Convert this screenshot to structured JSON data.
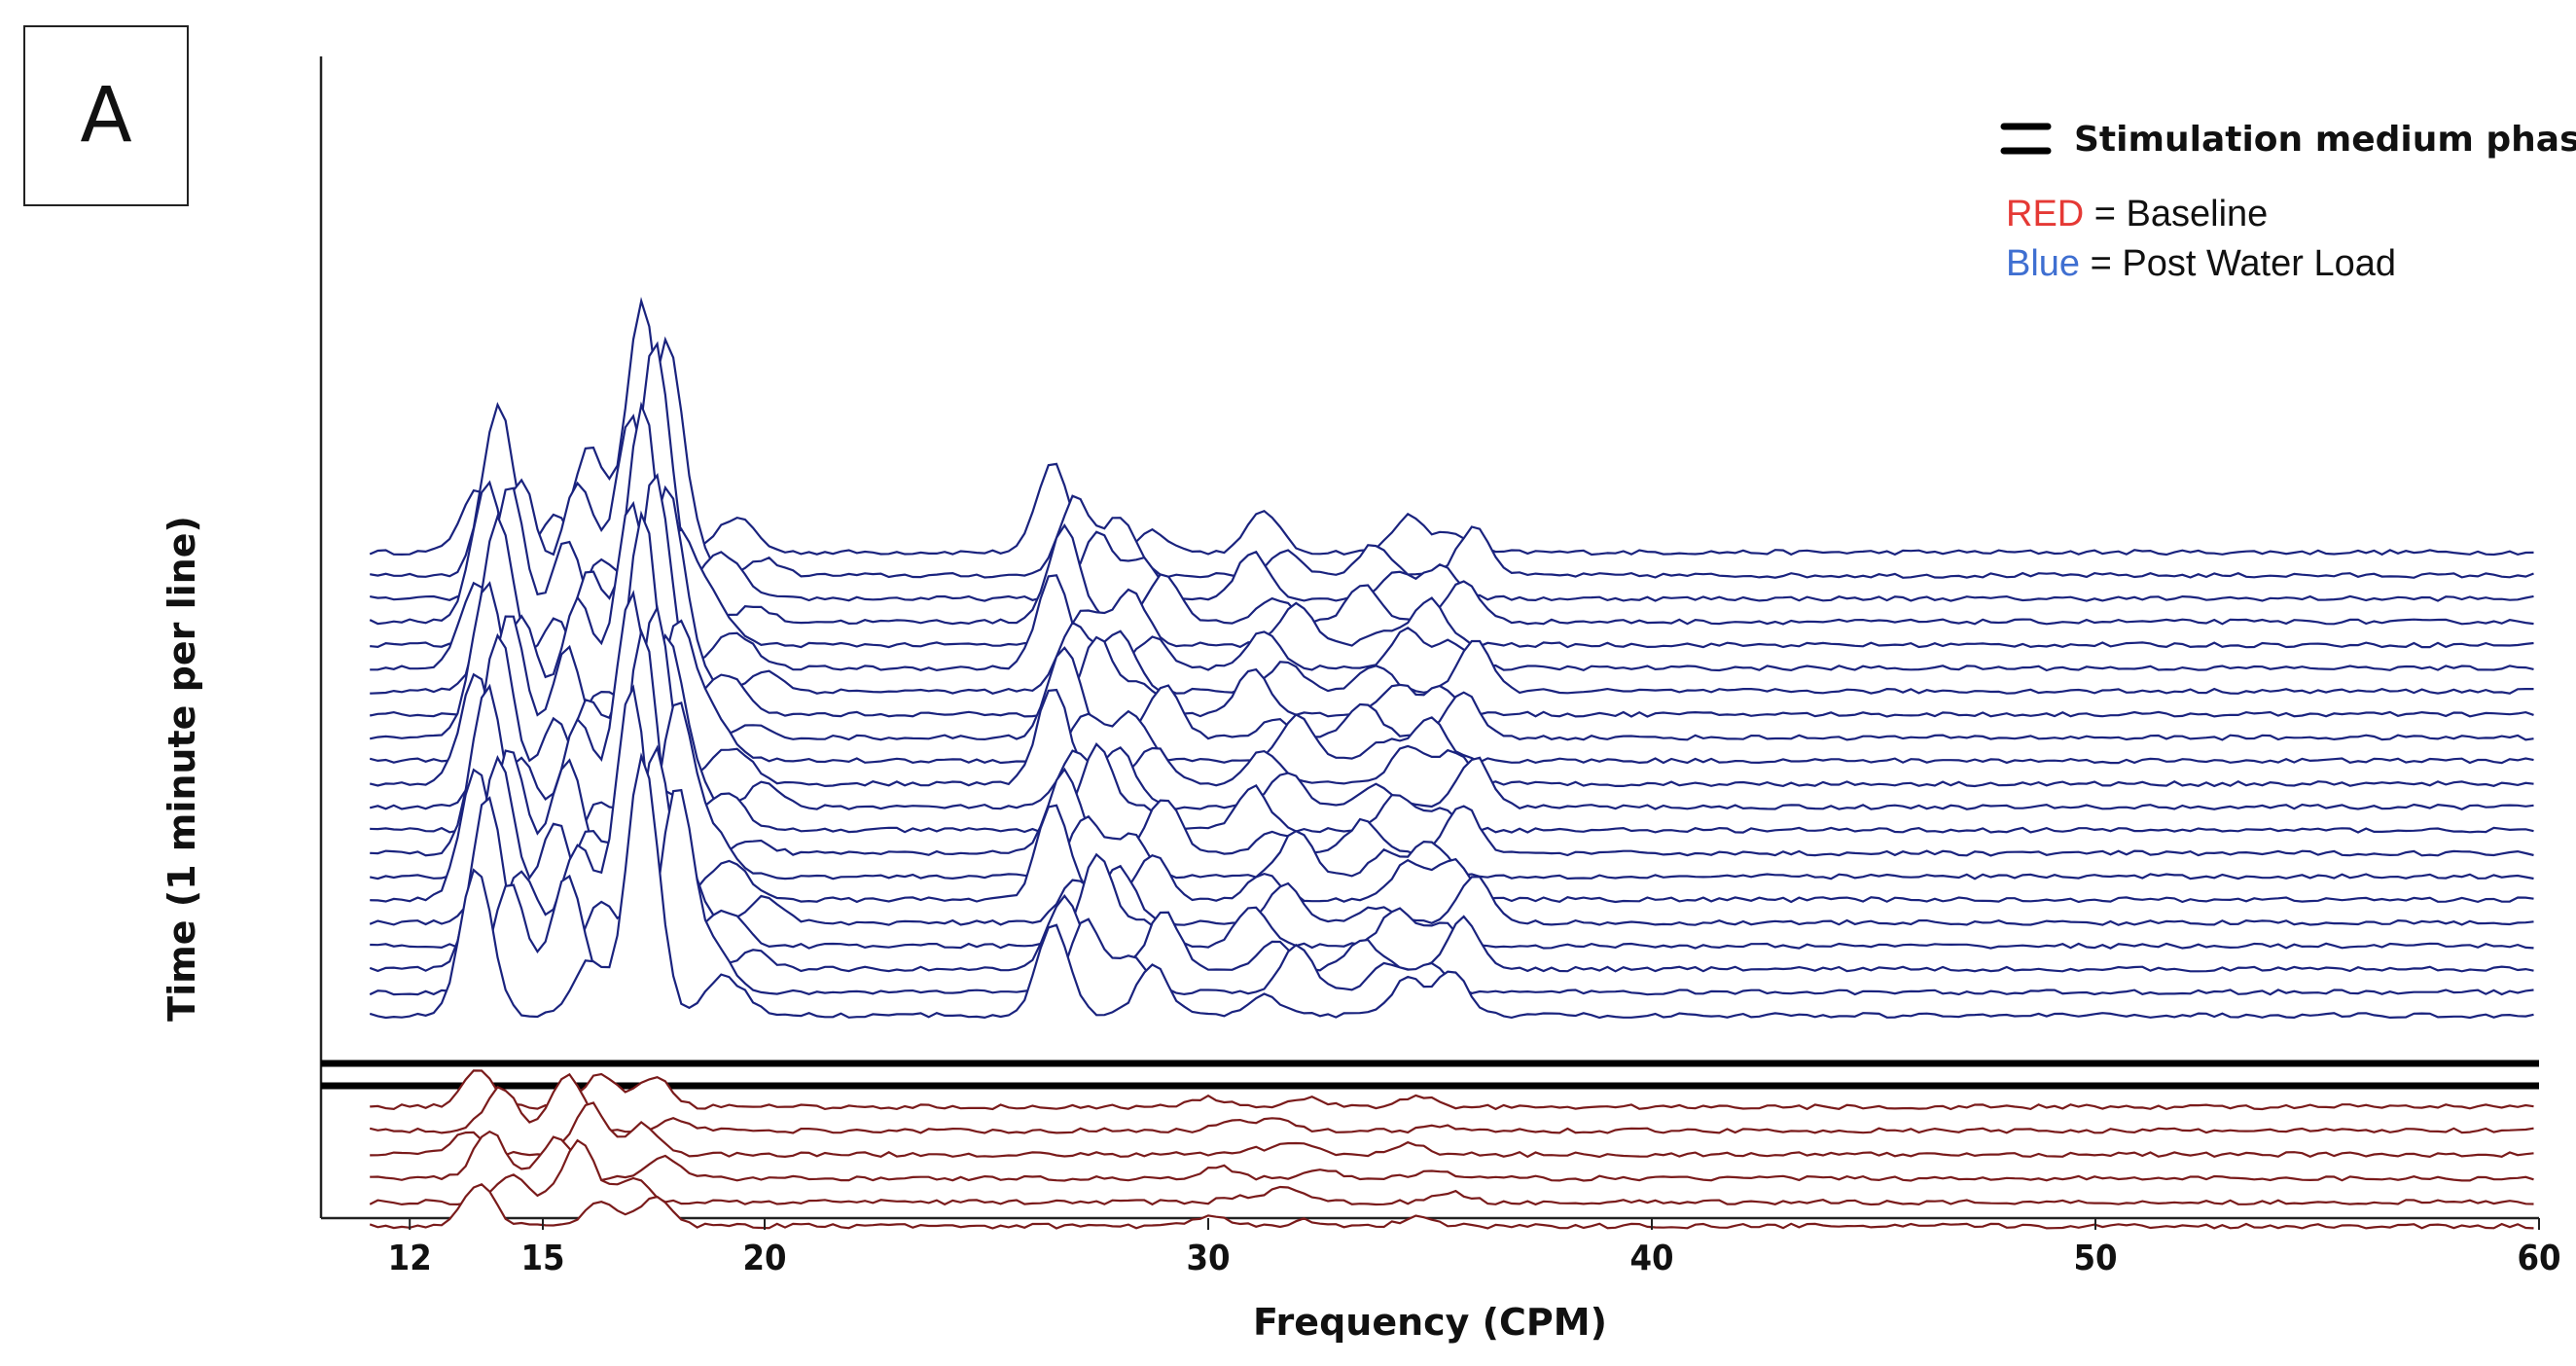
{
  "panel_label": "A",
  "colors": {
    "blue": "#1a237e",
    "red": "#7a1b1b",
    "phase_marker": "#000000",
    "legend_red": "#e53935",
    "legend_blue": "#3f6fd1"
  },
  "chart_data": {
    "type": "waterfall-line",
    "xlabel": "Frequency (CPM)",
    "ylabel": "Time (1 minute per line)",
    "xlim": [
      10,
      60
    ],
    "xticks": [
      12,
      15,
      20,
      30,
      40,
      50,
      60
    ],
    "legend": {
      "phase_marker_label": "Stimulation medium phase",
      "red_word": "RED",
      "red_rest": " = Baseline",
      "blue_word": "Blue",
      "blue_rest": " = Post Water Load"
    },
    "baseline_lines": 6,
    "post_water_load_lines": 21,
    "baseline_peaks": [
      {
        "freq": 13.8,
        "height": 1.2
      },
      {
        "freq": 15.8,
        "height": 1.6
      },
      {
        "freq": 17.5,
        "height": 0.8
      },
      {
        "freq": 30.5,
        "height": 0.3
      },
      {
        "freq": 32.0,
        "height": 0.4
      },
      {
        "freq": 35.0,
        "height": 0.3
      }
    ],
    "post_water_load_peaks": [
      {
        "freq": 14.0,
        "height": 4.5
      },
      {
        "freq": 15.8,
        "height": 3.0
      },
      {
        "freq": 17.5,
        "height": 7.0
      },
      {
        "freq": 18.5,
        "height": 1.0
      },
      {
        "freq": 19.5,
        "height": 0.8
      },
      {
        "freq": 27.0,
        "height": 2.5
      },
      {
        "freq": 28.5,
        "height": 1.5
      },
      {
        "freq": 31.5,
        "height": 1.2
      },
      {
        "freq": 34.0,
        "height": 1.0
      },
      {
        "freq": 35.5,
        "height": 1.3
      }
    ]
  }
}
